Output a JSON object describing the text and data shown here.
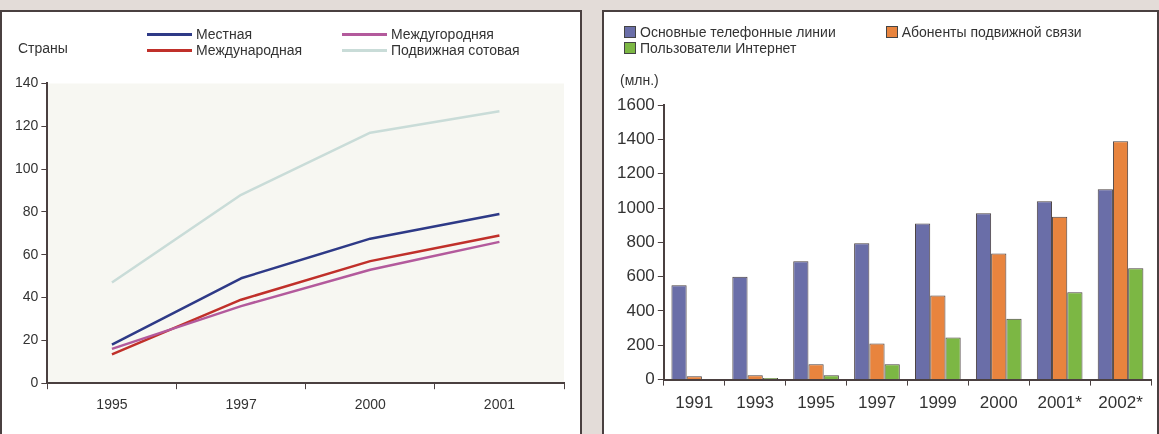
{
  "chart_data": [
    {
      "type": "line",
      "ylabel": "Страны",
      "categories": [
        "1995",
        "1997",
        "2000",
        "2001"
      ],
      "ylim": [
        0,
        140
      ],
      "yticks": [
        0,
        20,
        40,
        60,
        80,
        100,
        120,
        140
      ],
      "grid": false,
      "legend": "top",
      "series": [
        {
          "name": "Местная",
          "color": "#2e3a87",
          "values": [
            18,
            49,
            67.5,
            79
          ]
        },
        {
          "name": "Междугородняя",
          "color": "#b35a9c",
          "values": [
            16,
            36,
            53,
            66
          ]
        },
        {
          "name": "Международная",
          "color": "#c0302a",
          "values": [
            13.5,
            39,
            57,
            69
          ]
        },
        {
          "name": "Подвижная сотовая",
          "color": "#c9dcd8",
          "values": [
            47,
            88,
            117,
            127
          ]
        }
      ]
    },
    {
      "type": "bar",
      "ylabel": "(млн.)",
      "categories": [
        "1991",
        "1993",
        "1995",
        "1997",
        "1999",
        "2000",
        "2001*",
        "2002*"
      ],
      "ylim": [
        0,
        1600
      ],
      "yticks": [
        0,
        200,
        400,
        600,
        800,
        1000,
        1200,
        1400,
        1600
      ],
      "grid": false,
      "legend": "top",
      "series": [
        {
          "name": "Основные телефонные линии",
          "color": "#6a6ea8",
          "values": [
            550,
            600,
            690,
            795,
            910,
            970,
            1040,
            1110
          ]
        },
        {
          "name": "Абоненты подвижной связи",
          "color": "#e8843e",
          "values": [
            20,
            25,
            90,
            210,
            490,
            735,
            950,
            1390
          ]
        },
        {
          "name": "Пользователи Интернет",
          "color": "#7cb744",
          "values": [
            null,
            10,
            25,
            90,
            245,
            355,
            510,
            650
          ]
        }
      ]
    }
  ]
}
